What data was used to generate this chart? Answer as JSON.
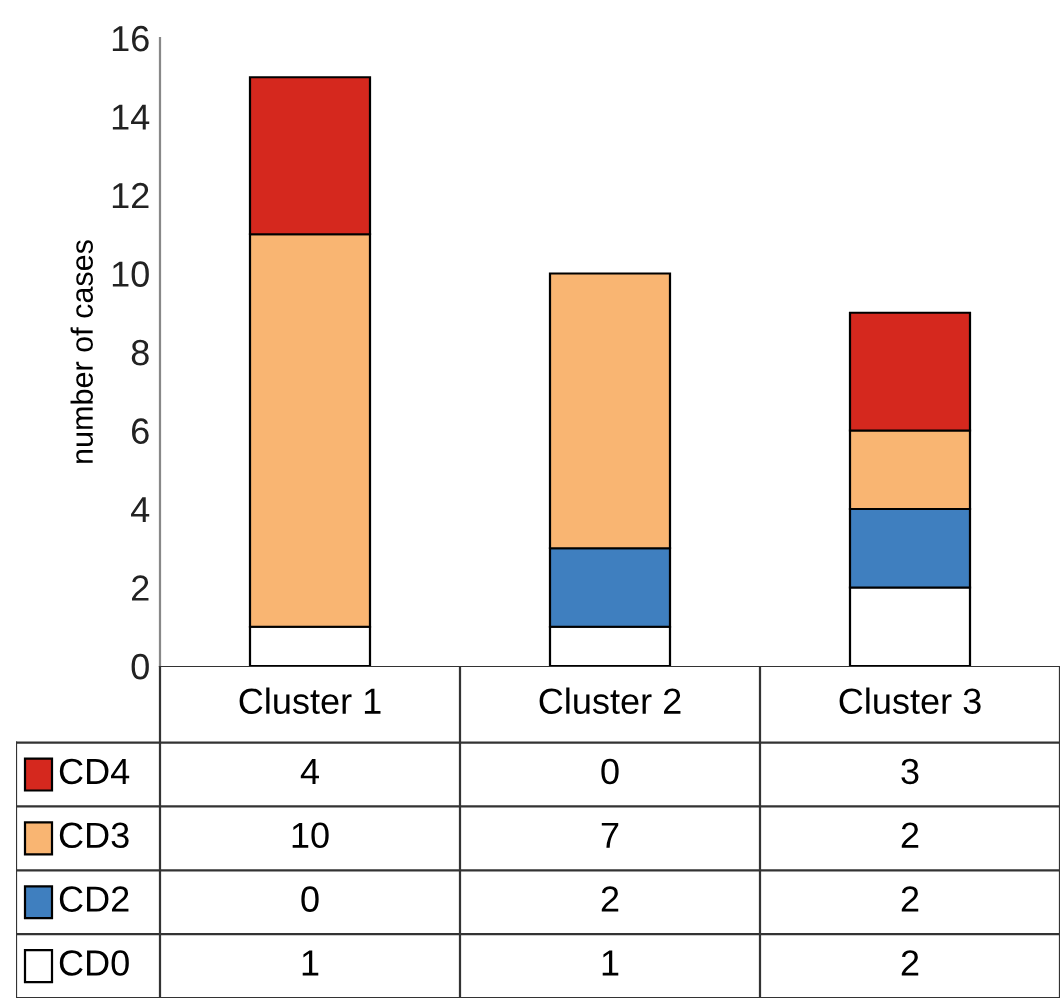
{
  "chart_data": {
    "type": "bar",
    "stacked": true,
    "ylabel": "number of cases",
    "categories": [
      "Cluster 1",
      "Cluster 2",
      "Cluster 3"
    ],
    "series": [
      {
        "name": "CD0",
        "color": "#ffffff",
        "values": [
          1,
          1,
          2
        ]
      },
      {
        "name": "CD2",
        "color": "#3f7fbf",
        "values": [
          0,
          2,
          2
        ]
      },
      {
        "name": "CD3",
        "color": "#f9b572",
        "values": [
          10,
          7,
          2
        ]
      },
      {
        "name": "CD4",
        "color": "#d5281e",
        "values": [
          4,
          0,
          3
        ]
      }
    ],
    "ylim": [
      0,
      16
    ],
    "yticks": [
      0,
      2,
      4,
      6,
      8,
      10,
      12,
      14,
      16
    ],
    "grid": false,
    "legend": "bottom left",
    "data_labels": true
  }
}
